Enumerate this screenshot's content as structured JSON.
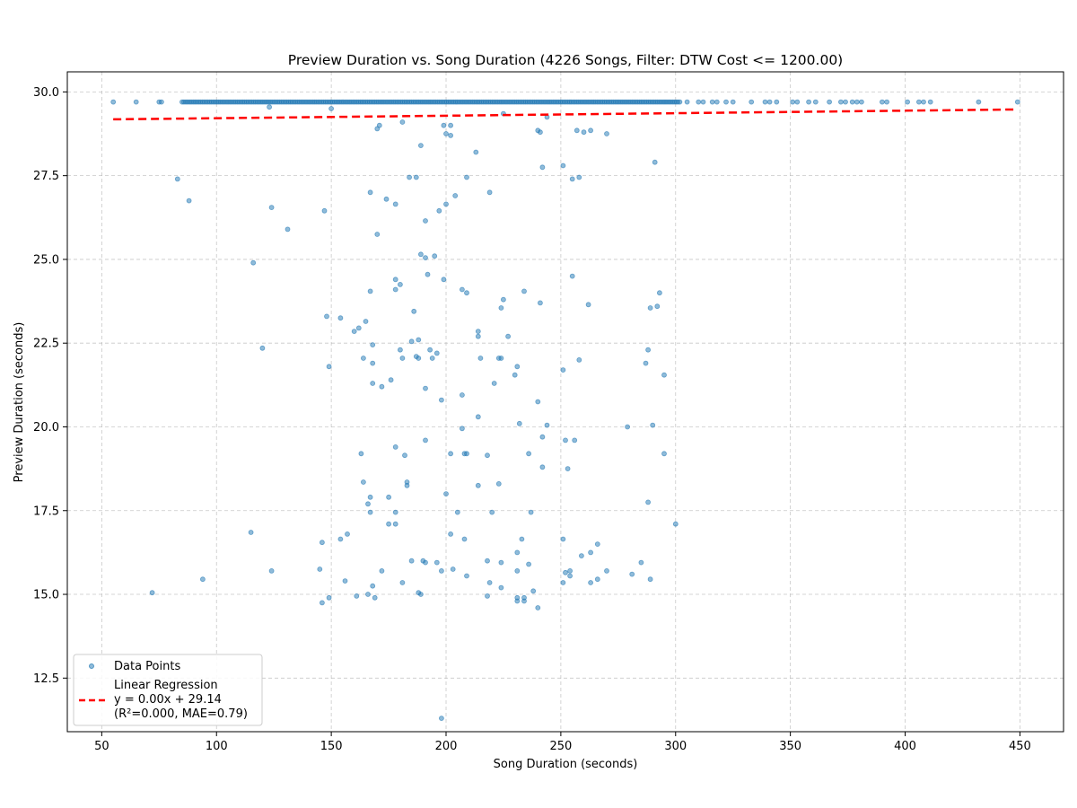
{
  "chart_data": {
    "type": "scatter",
    "title": "Preview Duration vs. Song Duration (4226 Songs, Filter: DTW Cost <= 1200.00)",
    "xlabel": "Song Duration (seconds)",
    "ylabel": "Preview Duration (seconds)",
    "xlim": [
      35,
      469
    ],
    "ylim": [
      10.9,
      30.6
    ],
    "xticks": [
      50,
      100,
      150,
      200,
      250,
      300,
      350,
      400,
      450
    ],
    "yticks": [
      12.5,
      15.0,
      17.5,
      20.0,
      22.5,
      25.0,
      27.5,
      30.0
    ],
    "xtick_labels": [
      "50",
      "100",
      "150",
      "200",
      "250",
      "300",
      "350",
      "400",
      "450"
    ],
    "ytick_labels": [
      "12.5",
      "15.0",
      "17.5",
      "20.0",
      "22.5",
      "25.0",
      "27.5",
      "30.0"
    ],
    "grid": true,
    "legend_position": "lower-left",
    "colors": {
      "points": "#1f77b4",
      "regression": "#ff0000"
    },
    "series": [
      {
        "name": "Data Points",
        "dense_band": {
          "y": 29.7,
          "x_from": 85,
          "x_to": 302
        },
        "points": [
          [
            55,
            29.7
          ],
          [
            65,
            29.7
          ],
          [
            75,
            29.7
          ],
          [
            76,
            29.7
          ],
          [
            123,
            29.55
          ],
          [
            150,
            29.5
          ],
          [
            225,
            29.35
          ],
          [
            244,
            29.25
          ],
          [
            305,
            29.7
          ],
          [
            310,
            29.7
          ],
          [
            312,
            29.7
          ],
          [
            316,
            29.7
          ],
          [
            318,
            29.7
          ],
          [
            322,
            29.7
          ],
          [
            325,
            29.7
          ],
          [
            333,
            29.7
          ],
          [
            339,
            29.7
          ],
          [
            341,
            29.7
          ],
          [
            344,
            29.7
          ],
          [
            351,
            29.7
          ],
          [
            353,
            29.7
          ],
          [
            358,
            29.7
          ],
          [
            361,
            29.7
          ],
          [
            367,
            29.7
          ],
          [
            372,
            29.7
          ],
          [
            374,
            29.7
          ],
          [
            377,
            29.7
          ],
          [
            379,
            29.7
          ],
          [
            381,
            29.7
          ],
          [
            390,
            29.7
          ],
          [
            392,
            29.7
          ],
          [
            401,
            29.7
          ],
          [
            406,
            29.7
          ],
          [
            408,
            29.7
          ],
          [
            411,
            29.7
          ],
          [
            432,
            29.7
          ],
          [
            449,
            29.7
          ],
          [
            171,
            29.0
          ],
          [
            170,
            28.9
          ],
          [
            181,
            29.1
          ],
          [
            199,
            29.0
          ],
          [
            202,
            29.0
          ],
          [
            200,
            28.75
          ],
          [
            202,
            28.7
          ],
          [
            240,
            28.85
          ],
          [
            241,
            28.8
          ],
          [
            257,
            28.85
          ],
          [
            260,
            28.8
          ],
          [
            263,
            28.85
          ],
          [
            270,
            28.75
          ],
          [
            189,
            28.4
          ],
          [
            213,
            28.2
          ],
          [
            242,
            27.75
          ],
          [
            251,
            27.8
          ],
          [
            291,
            27.9
          ],
          [
            83,
            27.4
          ],
          [
            88,
            26.75
          ],
          [
            184,
            27.45
          ],
          [
            187,
            27.45
          ],
          [
            209,
            27.45
          ],
          [
            255,
            27.4
          ],
          [
            258,
            27.45
          ],
          [
            167,
            27.0
          ],
          [
            174,
            26.8
          ],
          [
            178,
            26.65
          ],
          [
            219,
            27.0
          ],
          [
            204,
            26.9
          ],
          [
            200,
            26.65
          ],
          [
            124,
            26.55
          ],
          [
            147,
            26.45
          ],
          [
            197,
            26.45
          ],
          [
            191,
            26.15
          ],
          [
            131,
            25.9
          ],
          [
            170,
            25.75
          ],
          [
            116,
            24.9
          ],
          [
            189,
            25.15
          ],
          [
            191,
            25.05
          ],
          [
            195,
            25.1
          ],
          [
            192,
            24.55
          ],
          [
            199,
            24.4
          ],
          [
            178,
            24.4
          ],
          [
            180,
            24.25
          ],
          [
            178,
            24.1
          ],
          [
            167,
            24.05
          ],
          [
            207,
            24.1
          ],
          [
            209,
            24.0
          ],
          [
            234,
            24.05
          ],
          [
            255,
            24.5
          ],
          [
            262,
            23.65
          ],
          [
            241,
            23.7
          ],
          [
            225,
            23.8
          ],
          [
            293,
            24.0
          ],
          [
            292,
            23.6
          ],
          [
            289,
            23.55
          ],
          [
            224,
            23.55
          ],
          [
            186,
            23.45
          ],
          [
            148,
            23.3
          ],
          [
            154,
            23.25
          ],
          [
            165,
            23.15
          ],
          [
            162,
            22.95
          ],
          [
            160,
            22.85
          ],
          [
            214,
            22.85
          ],
          [
            214,
            22.7
          ],
          [
            227,
            22.7
          ],
          [
            185,
            22.55
          ],
          [
            188,
            22.6
          ],
          [
            168,
            22.45
          ],
          [
            120,
            22.35
          ],
          [
            180,
            22.3
          ],
          [
            193,
            22.3
          ],
          [
            196,
            22.2
          ],
          [
            288,
            22.3
          ],
          [
            187,
            22.1
          ],
          [
            188,
            22.05
          ],
          [
            181,
            22.05
          ],
          [
            194,
            22.05
          ],
          [
            164,
            22.05
          ],
          [
            215,
            22.05
          ],
          [
            223,
            22.05
          ],
          [
            224,
            22.05
          ],
          [
            258,
            22.0
          ],
          [
            168,
            21.9
          ],
          [
            149,
            21.8
          ],
          [
            231,
            21.8
          ],
          [
            287,
            21.9
          ],
          [
            251,
            21.7
          ],
          [
            230,
            21.55
          ],
          [
            295,
            21.55
          ],
          [
            176,
            21.4
          ],
          [
            168,
            21.3
          ],
          [
            172,
            21.2
          ],
          [
            191,
            21.15
          ],
          [
            221,
            21.3
          ],
          [
            207,
            20.95
          ],
          [
            198,
            20.8
          ],
          [
            240,
            20.75
          ],
          [
            214,
            20.3
          ],
          [
            232,
            20.1
          ],
          [
            244,
            20.05
          ],
          [
            207,
            19.95
          ],
          [
            279,
            20.0
          ],
          [
            290,
            20.05
          ],
          [
            191,
            19.6
          ],
          [
            242,
            19.7
          ],
          [
            252,
            19.6
          ],
          [
            256,
            19.6
          ],
          [
            178,
            19.4
          ],
          [
            163,
            19.2
          ],
          [
            182,
            19.15
          ],
          [
            202,
            19.2
          ],
          [
            208,
            19.2
          ],
          [
            209,
            19.2
          ],
          [
            218,
            19.15
          ],
          [
            236,
            19.2
          ],
          [
            295,
            19.2
          ],
          [
            242,
            18.8
          ],
          [
            253,
            18.75
          ],
          [
            164,
            18.35
          ],
          [
            183,
            18.35
          ],
          [
            183,
            18.25
          ],
          [
            214,
            18.25
          ],
          [
            223,
            18.3
          ],
          [
            200,
            18.0
          ],
          [
            167,
            17.9
          ],
          [
            175,
            17.9
          ],
          [
            288,
            17.75
          ],
          [
            166,
            17.7
          ],
          [
            167,
            17.45
          ],
          [
            178,
            17.45
          ],
          [
            205,
            17.45
          ],
          [
            220,
            17.45
          ],
          [
            237,
            17.45
          ],
          [
            175,
            17.1
          ],
          [
            178,
            17.1
          ],
          [
            300,
            17.1
          ],
          [
            115,
            16.85
          ],
          [
            157,
            16.8
          ],
          [
            154,
            16.65
          ],
          [
            202,
            16.8
          ],
          [
            208,
            16.65
          ],
          [
            233,
            16.65
          ],
          [
            251,
            16.65
          ],
          [
            146,
            16.55
          ],
          [
            266,
            16.5
          ],
          [
            231,
            16.25
          ],
          [
            263,
            16.25
          ],
          [
            259,
            16.15
          ],
          [
            185,
            16.0
          ],
          [
            190,
            16.0
          ],
          [
            191,
            15.95
          ],
          [
            196,
            15.95
          ],
          [
            218,
            16.0
          ],
          [
            224,
            15.95
          ],
          [
            236,
            15.9
          ],
          [
            285,
            15.95
          ],
          [
            124,
            15.7
          ],
          [
            145,
            15.75
          ],
          [
            172,
            15.7
          ],
          [
            198,
            15.7
          ],
          [
            203,
            15.75
          ],
          [
            209,
            15.55
          ],
          [
            231,
            15.7
          ],
          [
            252,
            15.65
          ],
          [
            254,
            15.7
          ],
          [
            254,
            15.55
          ],
          [
            270,
            15.7
          ],
          [
            281,
            15.6
          ],
          [
            266,
            15.45
          ],
          [
            94,
            15.45
          ],
          [
            156,
            15.4
          ],
          [
            168,
            15.25
          ],
          [
            181,
            15.35
          ],
          [
            219,
            15.35
          ],
          [
            224,
            15.2
          ],
          [
            238,
            15.1
          ],
          [
            251,
            15.35
          ],
          [
            263,
            15.35
          ],
          [
            289,
            15.45
          ],
          [
            72,
            15.05
          ],
          [
            161,
            14.95
          ],
          [
            166,
            15.0
          ],
          [
            169,
            14.9
          ],
          [
            149,
            14.9
          ],
          [
            146,
            14.75
          ],
          [
            188,
            15.05
          ],
          [
            189,
            15.0
          ],
          [
            218,
            14.95
          ],
          [
            231,
            14.9
          ],
          [
            231,
            14.8
          ],
          [
            234,
            14.8
          ],
          [
            234,
            14.9
          ],
          [
            240,
            14.6
          ],
          [
            198,
            11.3
          ]
        ]
      },
      {
        "name": "Linear Regression",
        "legend_lines": [
          "Linear Regression",
          "y = 0.00x + 29.14",
          "(R²=0.000, MAE=0.79)"
        ],
        "slope": 0.00075,
        "intercept": 29.14,
        "x_range": [
          55,
          449
        ]
      }
    ]
  }
}
